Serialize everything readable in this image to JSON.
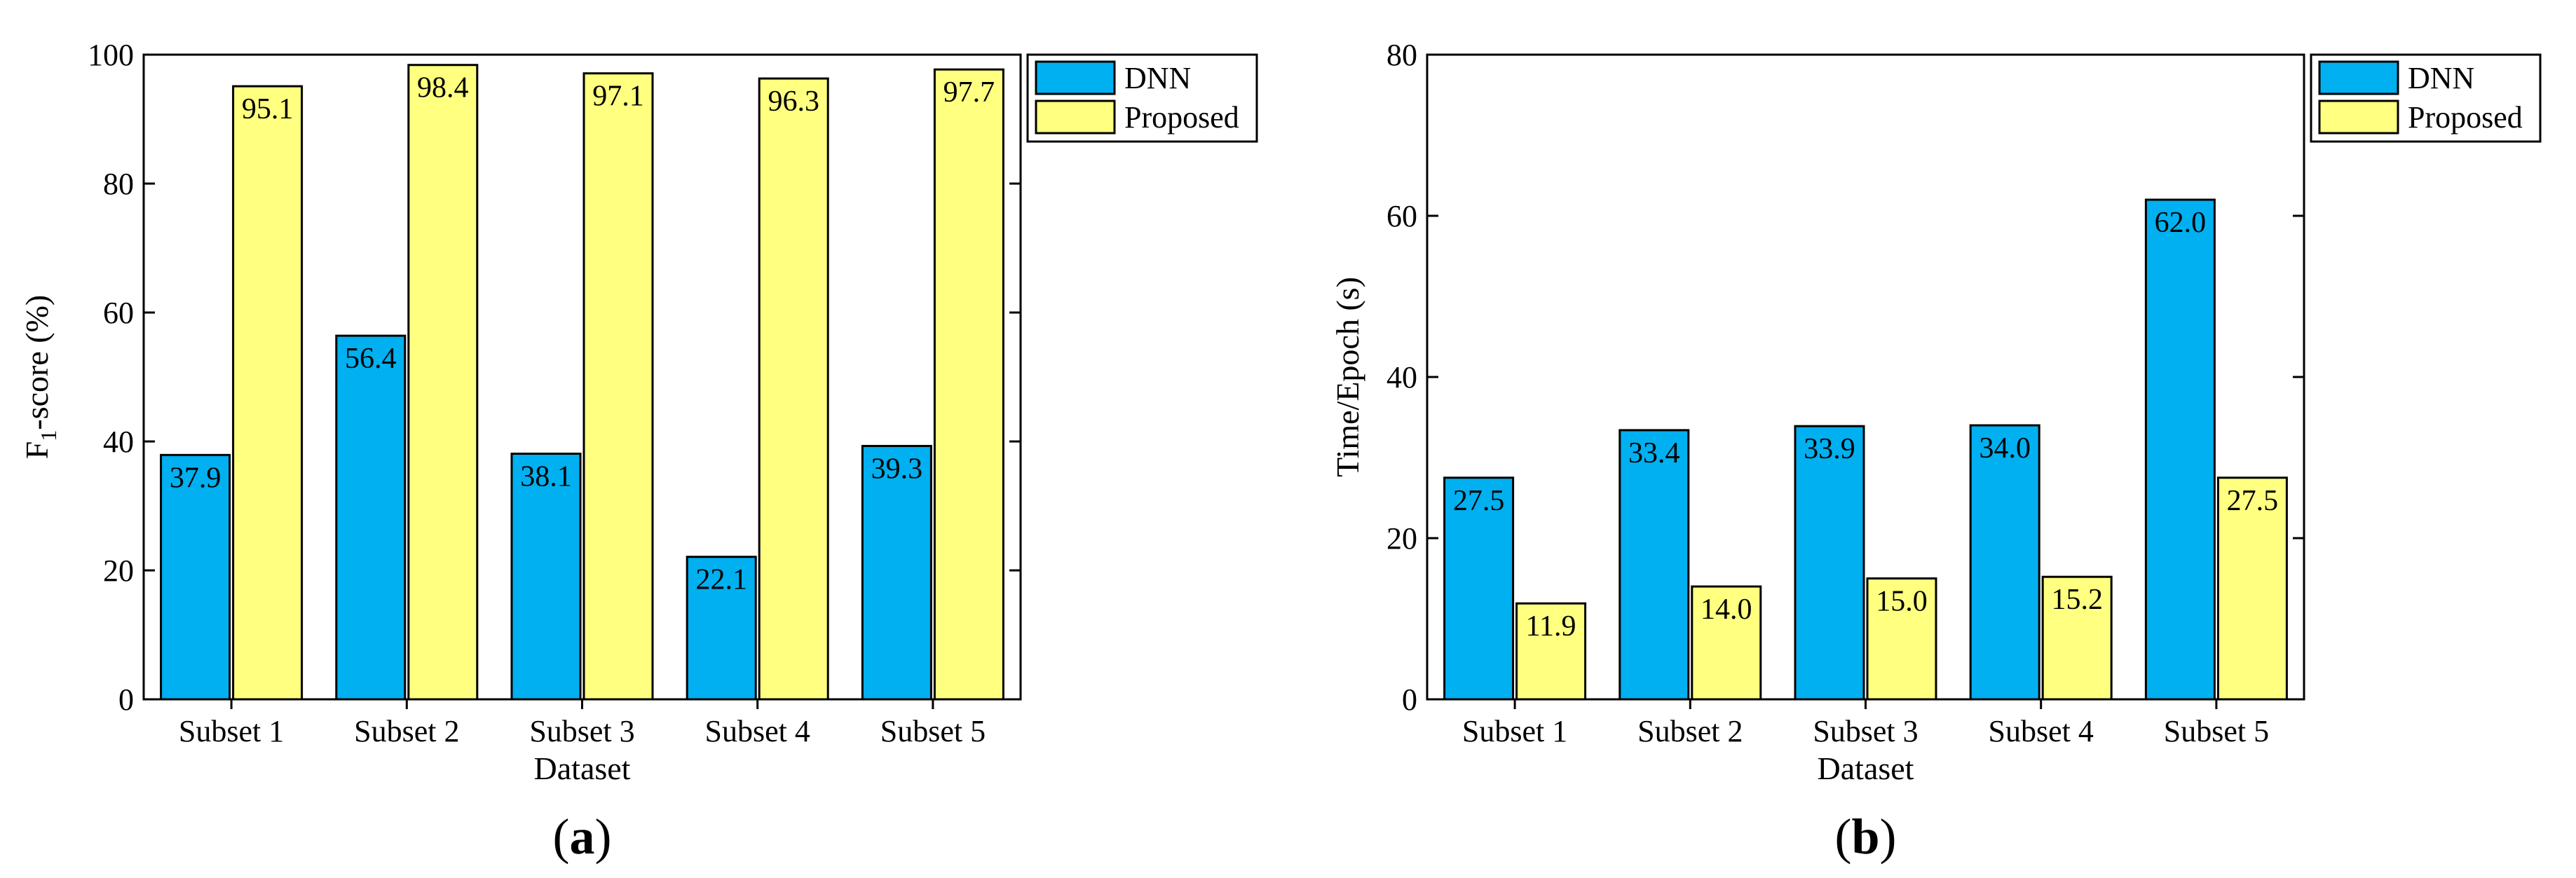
{
  "colors": {
    "series_0": "#00b0f0",
    "series_1": "#ffff80",
    "outline": "#000000"
  },
  "chart_data": [
    {
      "type": "bar",
      "panel_label": "a",
      "categories": [
        "Subset 1",
        "Subset 2",
        "Subset 3",
        "Subset 4",
        "Subset 5"
      ],
      "series": [
        {
          "name": "DNN",
          "values": [
            37.9,
            56.4,
            38.1,
            22.1,
            39.3
          ],
          "labels": [
            "37.9",
            "56.4",
            "38.1",
            "22.1",
            "39.3"
          ]
        },
        {
          "name": "Proposed",
          "values": [
            95.1,
            98.4,
            97.1,
            96.3,
            97.7
          ],
          "labels": [
            "95.1",
            "98.4",
            "97.1",
            "96.3",
            "97.7"
          ]
        }
      ],
      "title": "",
      "xlabel": "Dataset",
      "ylabel": {
        "main": "F",
        "subscript": "1",
        "rest": "-score (%)"
      },
      "ylim": [
        0,
        100
      ],
      "yticks": [
        0,
        20,
        40,
        60,
        80,
        100
      ],
      "ytick_labels": [
        "0",
        "20",
        "40",
        "60",
        "80",
        "100"
      ],
      "legend": {
        "position": "top-right-outside",
        "entries": [
          "DNN",
          "Proposed"
        ]
      }
    },
    {
      "type": "bar",
      "panel_label": "b",
      "categories": [
        "Subset 1",
        "Subset 2",
        "Subset 3",
        "Subset 4",
        "Subset 5"
      ],
      "series": [
        {
          "name": "DNN",
          "values": [
            27.5,
            33.4,
            33.9,
            34.0,
            62.0
          ],
          "labels": [
            "27.5",
            "33.4",
            "33.9",
            "34.0",
            "62.0"
          ]
        },
        {
          "name": "Proposed",
          "values": [
            11.9,
            14.0,
            15.0,
            15.2,
            27.5
          ],
          "labels": [
            "11.9",
            "14.0",
            "15.0",
            "15.2",
            "27.5"
          ]
        }
      ],
      "title": "",
      "xlabel": "Dataset",
      "ylabel": {
        "main": "Time/Epoch (s)",
        "subscript": "",
        "rest": ""
      },
      "ylim": [
        0,
        80
      ],
      "yticks": [
        0,
        20,
        40,
        60,
        80
      ],
      "ytick_labels": [
        "0",
        "20",
        "40",
        "60",
        "80"
      ],
      "legend": {
        "position": "top-right-outside",
        "entries": [
          "DNN",
          "Proposed"
        ]
      }
    }
  ]
}
